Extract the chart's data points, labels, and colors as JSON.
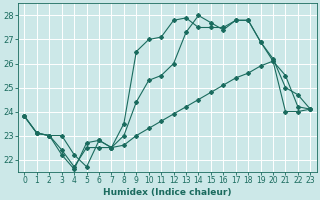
{
  "xlabel": "Humidex (Indice chaleur)",
  "bg_color": "#cce8e8",
  "grid_color": "#ffffff",
  "line_color": "#1a6b5e",
  "xlim": [
    -0.5,
    23.5
  ],
  "ylim": [
    21.5,
    28.5
  ],
  "yticks": [
    22,
    23,
    24,
    25,
    26,
    27,
    28
  ],
  "xticks": [
    0,
    1,
    2,
    3,
    4,
    5,
    6,
    7,
    8,
    9,
    10,
    11,
    12,
    13,
    14,
    15,
    16,
    17,
    18,
    19,
    20,
    21,
    22,
    23
  ],
  "xtick_labels": [
    "0",
    "1",
    "2",
    "3",
    "4",
    "5",
    "6",
    "7",
    "8",
    "9",
    "10",
    "11",
    "12",
    "13",
    "14",
    "15",
    "16",
    "17",
    "18",
    "19",
    "20",
    "21",
    "22",
    "23"
  ],
  "line1_x": [
    0,
    1,
    2,
    3,
    4,
    5,
    6,
    7,
    8,
    9,
    10,
    11,
    12,
    13,
    14,
    15,
    16,
    17,
    18,
    19,
    20,
    21,
    22,
    23
  ],
  "line1_y": [
    23.8,
    23.1,
    23.0,
    23.0,
    22.2,
    21.7,
    22.8,
    22.5,
    23.5,
    26.5,
    27.0,
    27.1,
    27.8,
    27.9,
    27.5,
    27.5,
    27.5,
    27.8,
    27.8,
    26.9,
    26.2,
    25.0,
    24.7,
    24.1
  ],
  "line2_x": [
    0,
    1,
    2,
    3,
    4,
    5,
    6,
    7,
    8,
    9,
    10,
    11,
    12,
    13,
    14,
    15,
    16,
    17,
    18,
    19,
    20,
    21,
    22,
    23
  ],
  "line2_y": [
    23.8,
    23.1,
    23.0,
    22.2,
    21.6,
    22.7,
    22.8,
    22.5,
    23.0,
    24.4,
    25.3,
    25.5,
    26.0,
    27.3,
    28.0,
    27.7,
    27.4,
    27.8,
    27.8,
    26.9,
    26.1,
    25.5,
    24.2,
    24.1
  ],
  "line3_x": [
    0,
    1,
    2,
    3,
    4,
    5,
    6,
    7,
    8,
    9,
    10,
    11,
    12,
    13,
    14,
    15,
    16,
    17,
    18,
    19,
    20,
    21,
    22,
    23
  ],
  "line3_y": [
    23.8,
    23.1,
    23.0,
    22.4,
    21.7,
    22.5,
    22.5,
    22.5,
    22.6,
    23.0,
    23.3,
    23.6,
    23.9,
    24.2,
    24.5,
    24.8,
    25.1,
    25.4,
    25.6,
    25.9,
    26.1,
    24.0,
    24.0,
    24.1
  ],
  "tick_fontsize": 5.5,
  "xlabel_fontsize": 6.5,
  "marker_size": 2.0,
  "line_width": 0.8
}
